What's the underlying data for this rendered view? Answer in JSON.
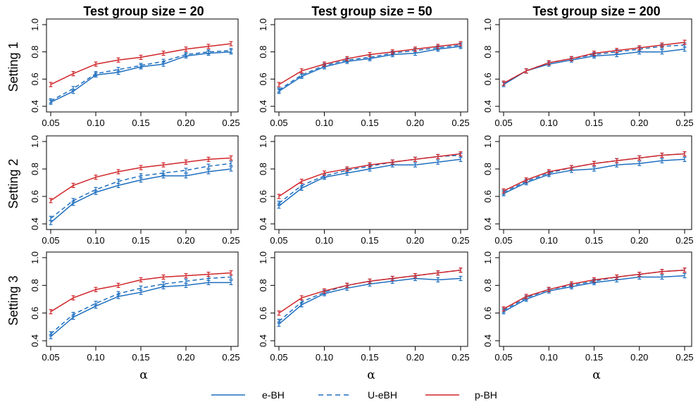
{
  "figure": {
    "column_titles": [
      "Test group size = 20",
      "Test group size = 50",
      "Test group size = 200"
    ],
    "row_labels": [
      "Setting 1",
      "Setting 2",
      "Setting 3"
    ],
    "xlabel": "α"
  },
  "legend": [
    {
      "name": "e-BH",
      "color": "#1f6fbf",
      "dash": "solid"
    },
    {
      "name": "U-eBH",
      "color": "#1f6fbf",
      "dash": "dashed"
    },
    {
      "name": "p-BH",
      "color": "#d0262a",
      "dash": "solid"
    }
  ],
  "chart_data": [
    {
      "type": "line",
      "row": 0,
      "col": 0,
      "x": [
        0.05,
        0.075,
        0.1,
        0.125,
        0.15,
        0.175,
        0.2,
        0.225,
        0.25
      ],
      "xticks": [
        "0.05",
        "0.10",
        "0.15",
        "0.20",
        "0.25"
      ],
      "xlim": [
        0.05,
        0.25
      ],
      "yticks": [
        "0.4",
        "0.6",
        "0.8",
        "1.0"
      ],
      "ylim": [
        0.4,
        1.0
      ],
      "series": [
        {
          "name": "e-BH",
          "values": [
            0.43,
            0.51,
            0.63,
            0.65,
            0.69,
            0.71,
            0.77,
            0.79,
            0.8
          ]
        },
        {
          "name": "U-eBH",
          "values": [
            0.44,
            0.53,
            0.64,
            0.67,
            0.7,
            0.73,
            0.78,
            0.8,
            0.81
          ]
        },
        {
          "name": "p-BH",
          "values": [
            0.56,
            0.64,
            0.71,
            0.74,
            0.76,
            0.79,
            0.82,
            0.84,
            0.86
          ]
        }
      ]
    },
    {
      "type": "line",
      "row": 0,
      "col": 1,
      "x": [
        0.05,
        0.075,
        0.1,
        0.125,
        0.15,
        0.175,
        0.2,
        0.225,
        0.25
      ],
      "xticks": [
        "0.05",
        "0.10",
        "0.15",
        "0.20",
        "0.25"
      ],
      "xlim": [
        0.05,
        0.25
      ],
      "yticks": [
        "0.4",
        "0.6",
        "0.8",
        "1.0"
      ],
      "ylim": [
        0.4,
        1.0
      ],
      "series": [
        {
          "name": "e-BH",
          "values": [
            0.51,
            0.62,
            0.69,
            0.73,
            0.75,
            0.78,
            0.79,
            0.82,
            0.84
          ]
        },
        {
          "name": "U-eBH",
          "values": [
            0.52,
            0.63,
            0.7,
            0.74,
            0.76,
            0.79,
            0.81,
            0.83,
            0.85
          ]
        },
        {
          "name": "p-BH",
          "values": [
            0.56,
            0.66,
            0.71,
            0.75,
            0.78,
            0.8,
            0.82,
            0.84,
            0.86
          ]
        }
      ]
    },
    {
      "type": "line",
      "row": 0,
      "col": 2,
      "x": [
        0.05,
        0.075,
        0.1,
        0.125,
        0.15,
        0.175,
        0.2,
        0.225,
        0.25
      ],
      "xticks": [
        "0.05",
        "0.10",
        "0.15",
        "0.20",
        "0.25"
      ],
      "xlim": [
        0.05,
        0.25
      ],
      "yticks": [
        "0.4",
        "0.6",
        "0.8",
        "1.0"
      ],
      "ylim": [
        0.4,
        1.0
      ],
      "series": [
        {
          "name": "e-BH",
          "values": [
            0.56,
            0.66,
            0.71,
            0.74,
            0.77,
            0.78,
            0.8,
            0.8,
            0.82
          ]
        },
        {
          "name": "U-eBH",
          "values": [
            0.57,
            0.66,
            0.72,
            0.75,
            0.78,
            0.8,
            0.82,
            0.84,
            0.85
          ]
        },
        {
          "name": "p-BH",
          "values": [
            0.57,
            0.66,
            0.72,
            0.75,
            0.79,
            0.81,
            0.83,
            0.85,
            0.87
          ]
        }
      ]
    },
    {
      "type": "line",
      "row": 1,
      "col": 0,
      "x": [
        0.05,
        0.075,
        0.1,
        0.125,
        0.15,
        0.175,
        0.2,
        0.225,
        0.25
      ],
      "xticks": [
        "0.05",
        "0.10",
        "0.15",
        "0.20",
        "0.25"
      ],
      "xlim": [
        0.05,
        0.25
      ],
      "yticks": [
        "0.4",
        "0.6",
        "0.8",
        "1.0"
      ],
      "ylim": [
        0.4,
        1.0
      ],
      "series": [
        {
          "name": "e-BH",
          "values": [
            0.41,
            0.55,
            0.63,
            0.68,
            0.72,
            0.75,
            0.75,
            0.78,
            0.8
          ]
        },
        {
          "name": "U-eBH",
          "values": [
            0.44,
            0.57,
            0.65,
            0.71,
            0.75,
            0.77,
            0.79,
            0.82,
            0.84
          ]
        },
        {
          "name": "p-BH",
          "values": [
            0.57,
            0.68,
            0.74,
            0.78,
            0.81,
            0.83,
            0.85,
            0.87,
            0.88
          ]
        }
      ]
    },
    {
      "type": "line",
      "row": 1,
      "col": 1,
      "x": [
        0.05,
        0.075,
        0.1,
        0.125,
        0.15,
        0.175,
        0.2,
        0.225,
        0.25
      ],
      "xticks": [
        "0.05",
        "0.10",
        "0.15",
        "0.20",
        "0.25"
      ],
      "xlim": [
        0.05,
        0.25
      ],
      "yticks": [
        "0.4",
        "0.6",
        "0.8",
        "1.0"
      ],
      "ylim": [
        0.4,
        1.0
      ],
      "series": [
        {
          "name": "e-BH",
          "values": [
            0.53,
            0.66,
            0.74,
            0.77,
            0.8,
            0.83,
            0.83,
            0.85,
            0.87
          ]
        },
        {
          "name": "U-eBH",
          "values": [
            0.55,
            0.68,
            0.75,
            0.79,
            0.82,
            0.85,
            0.87,
            0.89,
            0.9
          ]
        },
        {
          "name": "p-BH",
          "values": [
            0.6,
            0.71,
            0.77,
            0.8,
            0.83,
            0.85,
            0.87,
            0.89,
            0.91
          ]
        }
      ]
    },
    {
      "type": "line",
      "row": 1,
      "col": 2,
      "x": [
        0.05,
        0.075,
        0.1,
        0.125,
        0.15,
        0.175,
        0.2,
        0.225,
        0.25
      ],
      "xticks": [
        "0.05",
        "0.10",
        "0.15",
        "0.20",
        "0.25"
      ],
      "xlim": [
        0.05,
        0.25
      ],
      "yticks": [
        "0.4",
        "0.6",
        "0.8",
        "1.0"
      ],
      "ylim": [
        0.4,
        1.0
      ],
      "series": [
        {
          "name": "e-BH",
          "values": [
            0.62,
            0.7,
            0.76,
            0.79,
            0.8,
            0.83,
            0.84,
            0.86,
            0.87
          ]
        },
        {
          "name": "U-eBH",
          "values": [
            0.63,
            0.71,
            0.77,
            0.81,
            0.84,
            0.86,
            0.88,
            0.9,
            0.91
          ]
        },
        {
          "name": "p-BH",
          "values": [
            0.64,
            0.72,
            0.78,
            0.81,
            0.84,
            0.86,
            0.88,
            0.9,
            0.91
          ]
        }
      ]
    },
    {
      "type": "line",
      "row": 2,
      "col": 0,
      "x": [
        0.05,
        0.075,
        0.1,
        0.125,
        0.15,
        0.175,
        0.2,
        0.225,
        0.25
      ],
      "xticks": [
        "0.05",
        "0.10",
        "0.15",
        "0.20",
        "0.25"
      ],
      "xlim": [
        0.05,
        0.25
      ],
      "yticks": [
        "0.4",
        "0.6",
        "0.8",
        "1.0"
      ],
      "ylim": [
        0.4,
        1.0
      ],
      "series": [
        {
          "name": "e-BH",
          "values": [
            0.43,
            0.57,
            0.65,
            0.72,
            0.75,
            0.79,
            0.8,
            0.82,
            0.82
          ]
        },
        {
          "name": "U-eBH",
          "values": [
            0.45,
            0.59,
            0.67,
            0.74,
            0.78,
            0.81,
            0.83,
            0.85,
            0.86
          ]
        },
        {
          "name": "p-BH",
          "values": [
            0.61,
            0.71,
            0.77,
            0.8,
            0.84,
            0.86,
            0.87,
            0.88,
            0.89
          ]
        }
      ]
    },
    {
      "type": "line",
      "row": 2,
      "col": 1,
      "x": [
        0.05,
        0.075,
        0.1,
        0.125,
        0.15,
        0.175,
        0.2,
        0.225,
        0.25
      ],
      "xticks": [
        "0.05",
        "0.10",
        "0.15",
        "0.20",
        "0.25"
      ],
      "xlim": [
        0.05,
        0.25
      ],
      "yticks": [
        "0.4",
        "0.6",
        "0.8",
        "1.0"
      ],
      "ylim": [
        0.4,
        1.0
      ],
      "series": [
        {
          "name": "e-BH",
          "values": [
            0.52,
            0.66,
            0.74,
            0.78,
            0.81,
            0.83,
            0.85,
            0.84,
            0.85
          ]
        },
        {
          "name": "U-eBH",
          "values": [
            0.54,
            0.68,
            0.75,
            0.8,
            0.83,
            0.85,
            0.87,
            0.89,
            0.91
          ]
        },
        {
          "name": "p-BH",
          "values": [
            0.6,
            0.71,
            0.76,
            0.8,
            0.83,
            0.85,
            0.87,
            0.89,
            0.91
          ]
        }
      ]
    },
    {
      "type": "line",
      "row": 2,
      "col": 2,
      "x": [
        0.05,
        0.075,
        0.1,
        0.125,
        0.15,
        0.175,
        0.2,
        0.225,
        0.25
      ],
      "xticks": [
        "0.05",
        "0.10",
        "0.15",
        "0.20",
        "0.25"
      ],
      "xlim": [
        0.05,
        0.25
      ],
      "yticks": [
        "0.4",
        "0.6",
        "0.8",
        "1.0"
      ],
      "ylim": [
        0.4,
        1.0
      ],
      "series": [
        {
          "name": "e-BH",
          "values": [
            0.61,
            0.7,
            0.76,
            0.79,
            0.82,
            0.84,
            0.86,
            0.86,
            0.87
          ]
        },
        {
          "name": "U-eBH",
          "values": [
            0.62,
            0.71,
            0.77,
            0.8,
            0.83,
            0.86,
            0.88,
            0.9,
            0.91
          ]
        },
        {
          "name": "p-BH",
          "values": [
            0.63,
            0.72,
            0.77,
            0.81,
            0.84,
            0.86,
            0.88,
            0.9,
            0.91
          ]
        }
      ]
    }
  ]
}
